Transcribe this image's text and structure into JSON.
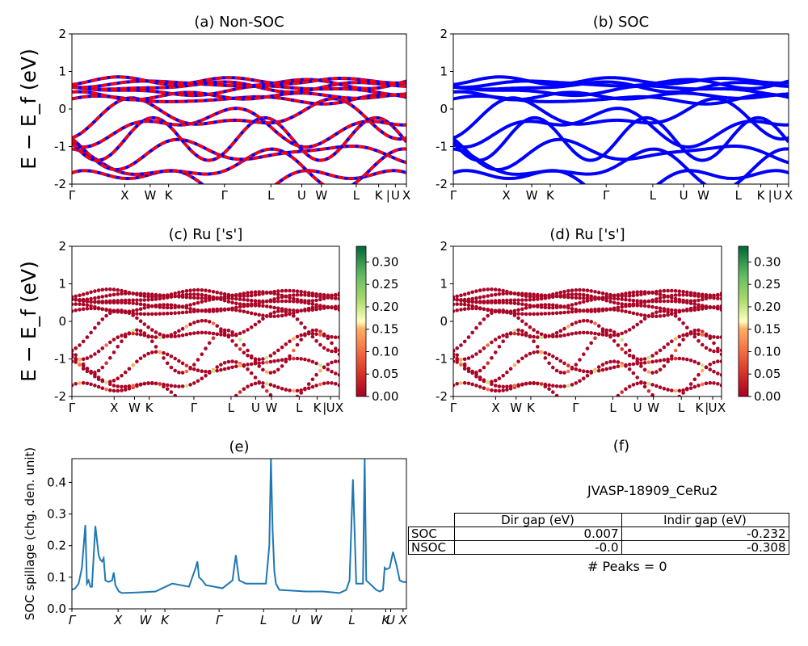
{
  "info": {
    "title": "JVASP-18909_CeRu2",
    "peaks": "# Peaks = 0",
    "table": {
      "headers": [
        "",
        "Dir gap (eV)",
        "Indir gap (eV)"
      ],
      "rows": [
        [
          "SOC",
          "0.007",
          "-0.232"
        ],
        [
          "NSOC",
          "-0.0",
          "-0.308"
        ]
      ]
    }
  },
  "ylabel_band": "E − E_f (eV)",
  "ylabel_spill": "SOC spillage (chg. den. unit)",
  "chart_data": [
    {
      "id": "a",
      "type": "line",
      "title": "(a) Non-SOC",
      "ylim": [
        -2,
        2
      ],
      "yticks": [
        "2",
        "1",
        "0",
        "-1",
        "-2"
      ],
      "xticks": [
        "Γ",
        "X",
        "W",
        "K",
        "Γ",
        "L",
        "U",
        "W",
        "L",
        "K",
        "|",
        "U",
        "X"
      ],
      "series_colors": [
        "#0000ff",
        "#ff0000"
      ],
      "line_style": "red dashed over blue",
      "bands": [
        -1.95,
        -1.55,
        -1.15,
        -0.8,
        -0.45,
        -0.2,
        0.25,
        0.35,
        0.5,
        0.6,
        0.68,
        0.75
      ]
    },
    {
      "id": "b",
      "type": "line",
      "title": "(b) SOC",
      "ylim": [
        -2,
        2
      ],
      "yticks": [
        "2",
        "1",
        "0",
        "-1",
        "-2"
      ],
      "xticks": [
        "Γ",
        "X",
        "W",
        "K",
        "Γ",
        "L",
        "U",
        "W",
        "L",
        "K",
        "|",
        "U",
        "X"
      ],
      "series_colors": [
        "#0000ff"
      ],
      "bands": [
        -1.95,
        -1.55,
        -1.15,
        -0.8,
        -0.45,
        -0.2,
        0.25,
        0.35,
        0.5,
        0.6,
        0.68,
        0.75
      ]
    },
    {
      "id": "c",
      "type": "scatter",
      "title": "(c)  Ru ['s']",
      "ylim": [
        -2,
        2
      ],
      "yticks": [
        "2",
        "1",
        "0",
        "-1",
        "-2"
      ],
      "xticks": [
        "Γ",
        "X",
        "W",
        "K",
        "Γ",
        "L",
        "U",
        "W",
        "L",
        "K",
        "|",
        "U",
        "X"
      ],
      "colorbar": {
        "min": 0.0,
        "max": 0.335,
        "ticks": [
          "0.30",
          "0.25",
          "0.20",
          "0.15",
          "0.10",
          "0.05",
          "0.00"
        ]
      },
      "bands": [
        -1.95,
        -1.55,
        -1.15,
        -0.8,
        -0.45,
        -0.2,
        0.25,
        0.35,
        0.5,
        0.6,
        0.68,
        0.75
      ]
    },
    {
      "id": "d",
      "type": "scatter",
      "title": "(d) Ru ['s']",
      "ylim": [
        -2,
        2
      ],
      "yticks": [
        "2",
        "1",
        "0",
        "-1",
        "-2"
      ],
      "xticks": [
        "Γ",
        "X",
        "W",
        "K",
        "Γ",
        "L",
        "U",
        "W",
        "L",
        "K",
        "|",
        "U",
        "X"
      ],
      "colorbar": {
        "min": 0.0,
        "max": 0.335,
        "ticks": [
          "0.30",
          "0.25",
          "0.20",
          "0.15",
          "0.10",
          "0.05",
          "0.00"
        ]
      },
      "bands": [
        -1.95,
        -1.55,
        -1.15,
        -0.8,
        -0.45,
        -0.2,
        0.25,
        0.35,
        0.5,
        0.6,
        0.68,
        0.75
      ]
    },
    {
      "id": "e",
      "type": "line",
      "title": "(e)",
      "ylim": [
        0,
        0.475
      ],
      "yticks": [
        "0.4",
        "0.3",
        "0.2",
        "0.1",
        "0.0"
      ],
      "xticks": [
        "Γ",
        "X",
        "W",
        "K",
        "Γ",
        "L",
        "U",
        "W",
        "L",
        "K",
        "U",
        "X"
      ],
      "series_colors": [
        "#1f77b4"
      ],
      "x": [
        0,
        0.01,
        0.02,
        0.03,
        0.04,
        0.045,
        0.05,
        0.055,
        0.06,
        0.07,
        0.08,
        0.085,
        0.09,
        0.095,
        0.1,
        0.11,
        0.12,
        0.125,
        0.13,
        0.14,
        0.15,
        0.2,
        0.25,
        0.3,
        0.35,
        0.37,
        0.375,
        0.38,
        0.39,
        0.4,
        0.45,
        0.48,
        0.49,
        0.495,
        0.5,
        0.51,
        0.52,
        0.58,
        0.59,
        0.595,
        0.6,
        0.605,
        0.61,
        0.62,
        0.7,
        0.75,
        0.8,
        0.82,
        0.83,
        0.84,
        0.845,
        0.85,
        0.86,
        0.87,
        0.875,
        0.88,
        0.89,
        0.9,
        0.91,
        0.92,
        0.93,
        0.935,
        0.94,
        0.95,
        0.96,
        0.97,
        0.98,
        0.99,
        1.0
      ],
      "y": [
        0.06,
        0.065,
        0.08,
        0.13,
        0.265,
        0.08,
        0.09,
        0.07,
        0.07,
        0.262,
        0.17,
        0.155,
        0.15,
        0.16,
        0.09,
        0.085,
        0.09,
        0.115,
        0.075,
        0.055,
        0.05,
        0.052,
        0.055,
        0.08,
        0.07,
        0.13,
        0.15,
        0.1,
        0.09,
        0.075,
        0.065,
        0.09,
        0.17,
        0.13,
        0.09,
        0.085,
        0.08,
        0.08,
        0.2,
        0.475,
        0.25,
        0.12,
        0.08,
        0.06,
        0.055,
        0.055,
        0.05,
        0.06,
        0.09,
        0.41,
        0.25,
        0.08,
        0.08,
        0.08,
        0.475,
        0.09,
        0.08,
        0.07,
        0.06,
        0.055,
        0.06,
        0.13,
        0.125,
        0.13,
        0.18,
        0.14,
        0.09,
        0.085,
        0.085
      ]
    }
  ]
}
